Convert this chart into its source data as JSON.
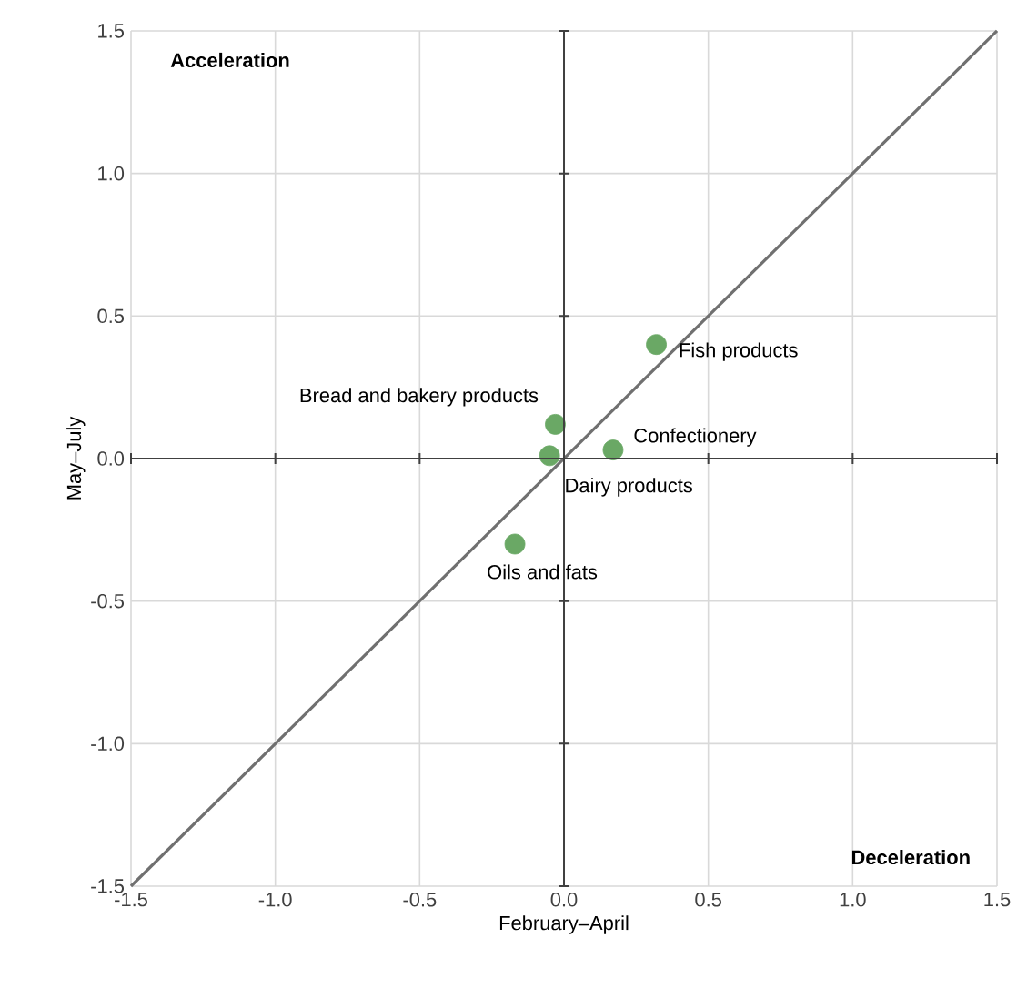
{
  "chart_data": {
    "type": "scatter",
    "xlabel": "February–April",
    "ylabel": "May–July",
    "xlim": [
      -1.5,
      1.5
    ],
    "ylim": [
      -1.5,
      1.5
    ],
    "xticks": [
      {
        "value": -1.5,
        "label": "-1.5"
      },
      {
        "value": -1,
        "label": "-1.0"
      },
      {
        "value": -0.5,
        "label": "-0.5"
      },
      {
        "value": 0,
        "label": "0.0"
      },
      {
        "value": 0.5,
        "label": "0.5"
      },
      {
        "value": 1,
        "label": "1.0"
      },
      {
        "value": 1.5,
        "label": "1.5"
      }
    ],
    "yticks": [
      {
        "value": -1.5,
        "label": "-1.5"
      },
      {
        "value": -1,
        "label": "-1.0"
      },
      {
        "value": -0.5,
        "label": "-0.5"
      },
      {
        "value": 0,
        "label": "0.0"
      },
      {
        "value": 0.5,
        "label": "0.5"
      },
      {
        "value": 1,
        "label": "1.0"
      },
      {
        "value": 1.5,
        "label": "1.5"
      }
    ],
    "grid": true,
    "series": [
      {
        "type": "line",
        "color": "#707070",
        "marker": "none",
        "line_style": "solid",
        "x": [
          -1.5,
          1.5
        ],
        "values": [
          -1.5,
          1.5
        ]
      },
      {
        "color": "#6aa865",
        "marker": "circle",
        "x": [
          0.32,
          -0.03,
          0.17,
          -0.05,
          -0.17
        ],
        "values": [
          0.4,
          0.12,
          0.03,
          0.01,
          -0.3
        ]
      }
    ],
    "annotations": [
      "**Acceleration**",
      "**Deceleration**",
      {
        "text": "Fish products",
        "x": 0.32,
        "y": 0.4
      },
      {
        "text": "Bread and bakery products",
        "x": -0.03,
        "y": 0.12
      },
      {
        "text": "Confectionery",
        "x": 0.17,
        "y": 0.03
      },
      {
        "text": "Dairy products",
        "x": -0.05,
        "y": 0.01
      },
      {
        "text": "Oils and fats",
        "x": -0.17,
        "y": -0.3
      }
    ]
  }
}
